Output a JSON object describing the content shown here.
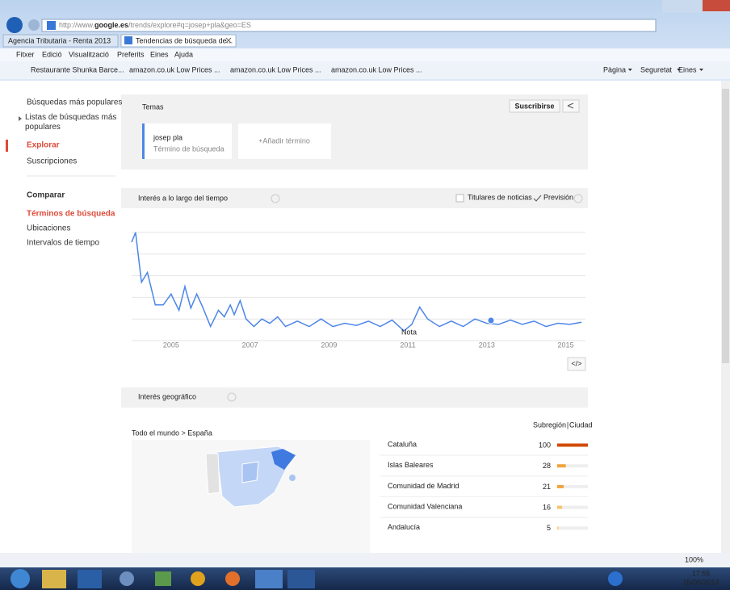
{
  "browser": {
    "url_prefix": "http://www.",
    "url_domain": "google.es",
    "url_path": "/trends/explore#q=josep+pla&geo=ES",
    "tabs": [
      "Agencia Tributaria - Renta 2013",
      "Tendencias de búsqueda de..."
    ],
    "menu": [
      "Fitxer",
      "Edició",
      "Visualització",
      "Preferits",
      "Eines",
      "Ajuda"
    ],
    "favorites": [
      "Restaurante Shunka Barce...",
      "amazon.co.uk Low Prices ...",
      "amazon.co.uk Low Prices ...",
      "amazon.co.uk Low Prices ..."
    ],
    "commands": [
      "Pàgina",
      "Seguretat",
      "Eines"
    ]
  },
  "sidebar": {
    "explore": [
      "Búsquedas más populares",
      "Listas de búsquedas más populares",
      "Explorar",
      "Suscripciones"
    ],
    "compare_title": "Comparar",
    "compare": [
      "Términos de búsqueda",
      "Ubicaciones",
      "Intervalos de tiempo"
    ]
  },
  "temas": {
    "title": "Temas",
    "subscribe": "Suscribirse",
    "term": "josep pla",
    "term_sub": "Término de búsqueda",
    "add": "+Añadir término"
  },
  "chart_data": [
    {
      "type": "line",
      "title": "Interés a lo largo del tiempo",
      "options": [
        "Titulares de noticias",
        "Previsión"
      ],
      "annotation": "Nota",
      "xlim": [
        2004,
        2015.5
      ],
      "xticks": [
        2005,
        2007,
        2009,
        2011,
        2013,
        2015
      ],
      "ylim": [
        0,
        100
      ],
      "ygrid": [
        20,
        40,
        60,
        80,
        100
      ],
      "series": [
        {
          "name": "josep pla",
          "color": "#4d86e8",
          "x": [
            2004.0,
            2004.1,
            2004.25,
            2004.4,
            2004.6,
            2004.8,
            2005.0,
            2005.2,
            2005.35,
            2005.5,
            2005.65,
            2005.8,
            2006.0,
            2006.2,
            2006.35,
            2006.5,
            2006.6,
            2006.75,
            2006.9,
            2007.1,
            2007.3,
            2007.5,
            2007.7,
            2007.9,
            2008.2,
            2008.5,
            2008.8,
            2009.1,
            2009.4,
            2009.7,
            2010.0,
            2010.3,
            2010.6,
            2010.9,
            2011.1,
            2011.3,
            2011.5,
            2011.8,
            2012.1,
            2012.4,
            2012.7,
            2013.0,
            2013.3,
            2013.6,
            2013.9,
            2014.2,
            2014.5,
            2014.8,
            2015.1,
            2015.4
          ],
          "values": [
            91,
            100,
            54,
            63,
            33,
            33,
            43,
            28,
            50,
            30,
            43,
            31,
            13,
            28,
            22,
            33,
            24,
            37,
            20,
            13,
            20,
            16,
            22,
            13,
            18,
            13,
            20,
            13,
            16,
            14,
            18,
            13,
            19,
            9,
            15,
            31,
            20,
            13,
            18,
            13,
            20,
            16,
            15,
            19,
            15,
            18,
            13,
            16,
            15,
            17
          ]
        }
      ]
    },
    {
      "type": "bar",
      "title": "Interés geográfico",
      "breadcrumb": "Todo el mundo > España",
      "subregion": "Subregión",
      "city": "Ciudad",
      "categories": [
        "Cataluña",
        "Islas Baleares",
        "Comunidad de Madrid",
        "Comunidad Valenciana",
        "Andalucía"
      ],
      "values": [
        100,
        28,
        21,
        16,
        5
      ],
      "xlim": [
        0,
        100
      ],
      "colors": [
        "#d14a02",
        "#f2a33c",
        "#f2a33c",
        "#f7c46c",
        "#f9d48e"
      ]
    }
  ],
  "status": {
    "zoom": "100%"
  },
  "taskbar": {
    "time": "17:55",
    "date": "15/06/2014"
  }
}
